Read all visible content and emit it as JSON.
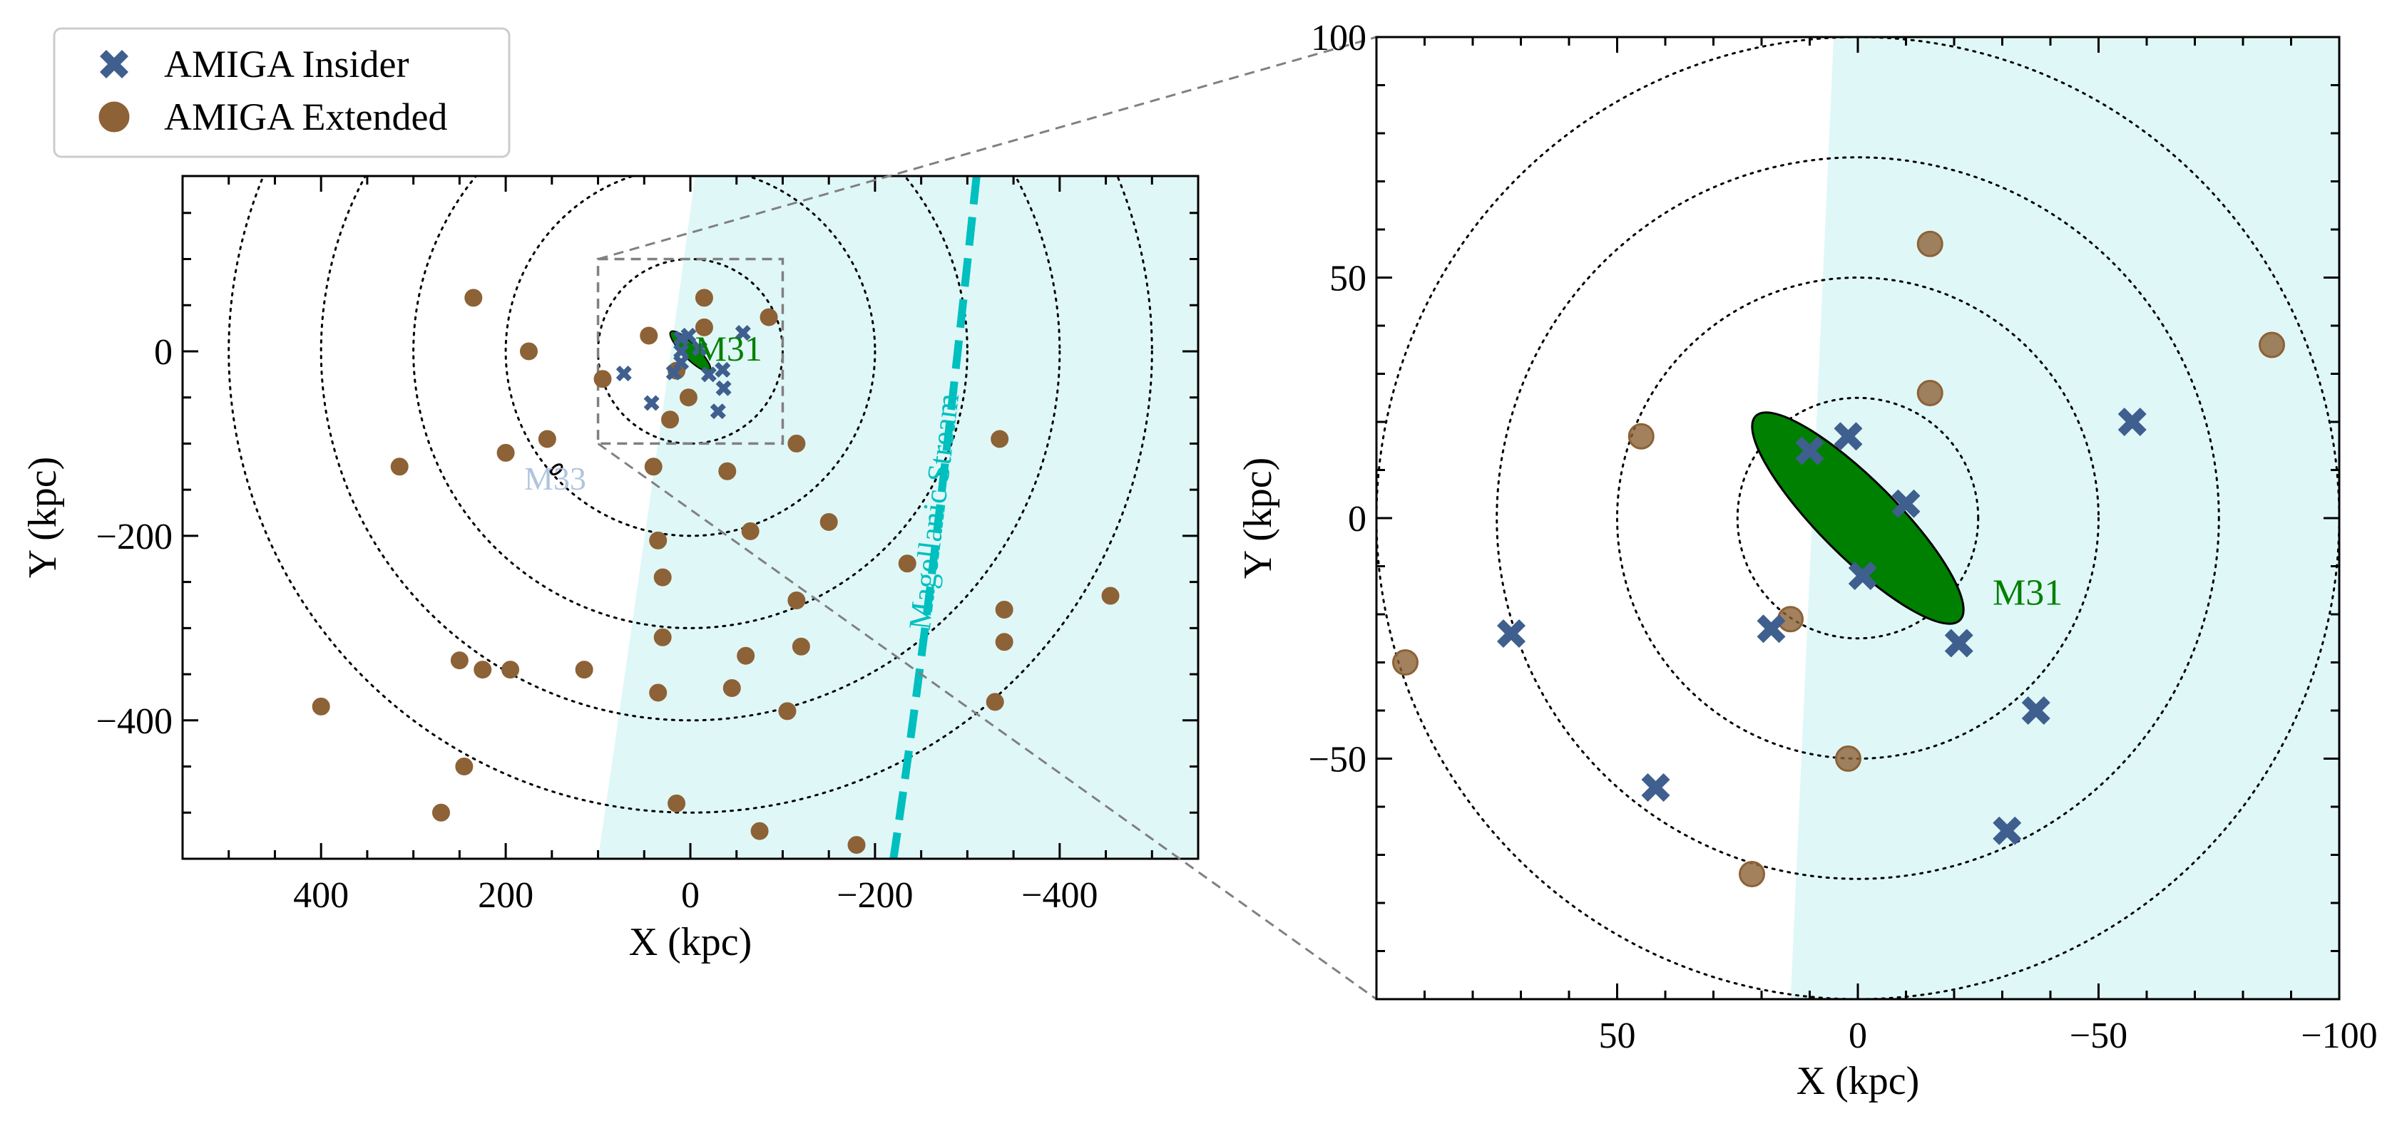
{
  "legend": {
    "entries": [
      {
        "label": "AMIGA Insider",
        "marker": "x",
        "color": "#3f5f8f"
      },
      {
        "label": "AMIGA Extended",
        "marker": "o",
        "color": "#8c6236"
      }
    ]
  },
  "colors": {
    "insider": "#3f5f8f",
    "extended": "#8c6236",
    "m31": "#008000",
    "m33": "#b0c4de",
    "stream": "#00bfbf",
    "shade": "#e0f7f7"
  },
  "chart_data": [
    {
      "type": "scatter",
      "panel": "overview",
      "title": "",
      "xlabel": "X (kpc)",
      "ylabel": "Y (kpc)",
      "xlim": [
        550,
        -550
      ],
      "ylim": [
        -550,
        190
      ],
      "x_inverted": true,
      "xticks": [
        400,
        200,
        0,
        -200,
        -400
      ],
      "xtick_labels": [
        "400",
        "200",
        "0",
        "−200",
        "−400"
      ],
      "yticks": [
        0,
        -200,
        -400
      ],
      "ytick_labels": [
        "0",
        "−200",
        "−400"
      ],
      "grid": false,
      "circles_kpc": [
        100,
        200,
        300,
        400,
        500
      ],
      "shade_boundary": [
        [
          -5,
          190
        ],
        [
          20,
          0
        ],
        [
          100,
          -550
        ]
      ],
      "zoom_box": {
        "x": [
          -100,
          100
        ],
        "y": [
          -100,
          100
        ]
      },
      "stream": {
        "label": "Magellanic Stream",
        "points": [
          [
            -310,
            190
          ],
          [
            -290,
            0
          ],
          [
            -260,
            -280
          ],
          [
            -220,
            -550
          ]
        ]
      },
      "annotations": [
        {
          "text": "M31",
          "x": -5,
          "y": -10,
          "color": "#008000"
        },
        {
          "text": "M33",
          "x": 180,
          "y": -150,
          "color": "#b0c4de"
        }
      ],
      "m33": {
        "x": 145,
        "y": -128
      },
      "series": [
        {
          "name": "AMIGA Insider",
          "points": [
            [
              10,
              -12
            ],
            [
              -10,
              3
            ],
            [
              2,
              17
            ],
            [
              10,
              14
            ],
            [
              18,
              -23
            ],
            [
              -20,
              -25
            ],
            [
              -36,
              -40
            ],
            [
              -30,
              -65
            ],
            [
              -57,
              20
            ],
            [
              72,
              -24
            ],
            [
              42,
              -56
            ],
            [
              -35,
              -20
            ],
            [
              10,
              0
            ]
          ]
        },
        {
          "name": "AMIGA Extended",
          "points": [
            [
              235,
              58
            ],
            [
              175,
              0
            ],
            [
              155,
              -95
            ],
            [
              200,
              -110
            ],
            [
              315,
              -125
            ],
            [
              -15,
              58
            ],
            [
              -85,
              37
            ],
            [
              -15,
              26
            ],
            [
              45,
              17
            ],
            [
              15,
              -21
            ],
            [
              2,
              -50
            ],
            [
              22,
              -74
            ],
            [
              95,
              -30
            ],
            [
              40,
              -125
            ],
            [
              -40,
              -130
            ],
            [
              -115,
              -100
            ],
            [
              -335,
              -95
            ],
            [
              35,
              -205
            ],
            [
              30,
              -245
            ],
            [
              -65,
              -195
            ],
            [
              -150,
              -185
            ],
            [
              -235,
              -230
            ],
            [
              -115,
              -270
            ],
            [
              -340,
              -280
            ],
            [
              -455,
              -265
            ],
            [
              30,
              -310
            ],
            [
              -60,
              -330
            ],
            [
              -120,
              -320
            ],
            [
              -340,
              -315
            ],
            [
              250,
              -335
            ],
            [
              225,
              -345
            ],
            [
              195,
              -345
            ],
            [
              115,
              -345
            ],
            [
              35,
              -370
            ],
            [
              -45,
              -365
            ],
            [
              -105,
              -390
            ],
            [
              -330,
              -380
            ],
            [
              400,
              -385
            ],
            [
              245,
              -450
            ],
            [
              270,
              -500
            ],
            [
              15,
              -490
            ],
            [
              -75,
              -520
            ],
            [
              -180,
              -535
            ]
          ]
        }
      ]
    },
    {
      "type": "scatter",
      "panel": "zoom",
      "title": "",
      "xlabel": "X (kpc)",
      "ylabel": "Y (kpc)",
      "xlim": [
        100,
        -100
      ],
      "ylim": [
        -100,
        100
      ],
      "x_inverted": true,
      "xticks": [
        50,
        0,
        -50,
        -100
      ],
      "xtick_labels": [
        "50",
        "0",
        "−50",
        "−100"
      ],
      "yticks": [
        100,
        50,
        0,
        -50
      ],
      "ytick_labels": [
        "100",
        "50",
        "0",
        "−50"
      ],
      "grid": false,
      "circles_kpc": [
        25,
        50,
        75,
        100
      ],
      "shade_boundary": [
        [
          5,
          100
        ],
        [
          14,
          -100
        ]
      ],
      "m31_ellipse": {
        "cx": 0,
        "cy": 0,
        "semi_major": 30,
        "semi_minor": 8,
        "angle_deg": -45
      },
      "annotations": [
        {
          "text": "M31",
          "x": -28,
          "y": -18,
          "color": "#008000"
        }
      ],
      "series": [
        {
          "name": "AMIGA Insider",
          "points": [
            [
              10,
              14
            ],
            [
              2,
              17
            ],
            [
              -10,
              3
            ],
            [
              -1,
              -12
            ],
            [
              18,
              -23
            ],
            [
              -21,
              -26
            ],
            [
              -37,
              -40
            ],
            [
              -57,
              20
            ],
            [
              72,
              -24
            ],
            [
              42,
              -56
            ],
            [
              -31,
              -65
            ]
          ]
        },
        {
          "name": "AMIGA Extended",
          "points": [
            [
              -15,
              57
            ],
            [
              -15,
              26
            ],
            [
              45,
              17
            ],
            [
              -86,
              36
            ],
            [
              14,
              -21
            ],
            [
              2,
              -50
            ],
            [
              22,
              -74
            ],
            [
              94,
              -30
            ]
          ]
        }
      ]
    }
  ]
}
